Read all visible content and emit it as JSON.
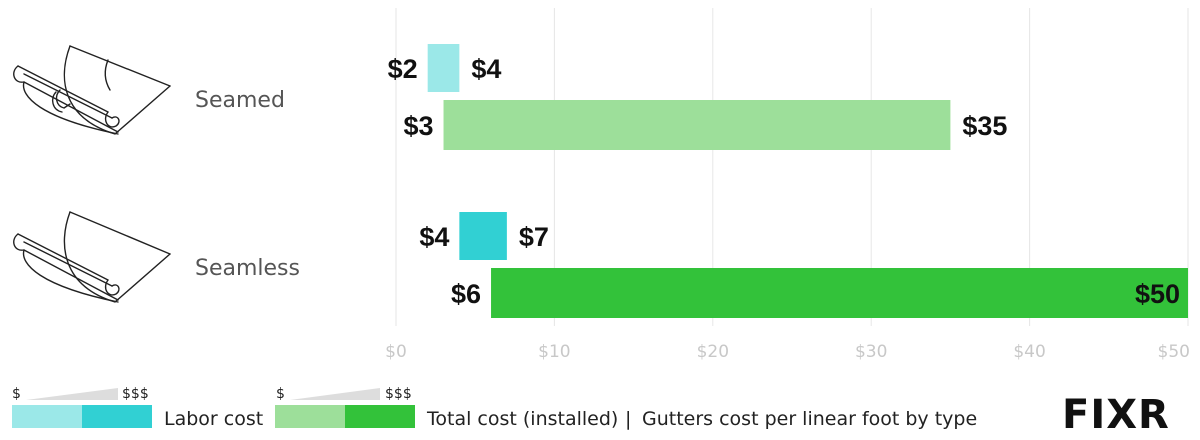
{
  "chart_data": {
    "type": "bar",
    "orientation": "horizontal",
    "bar_style": "floating-range",
    "categories": [
      "Seamed",
      "Seamless"
    ],
    "series": [
      {
        "name": "Labor cost",
        "ranges": [
          {
            "low": 2,
            "high": 4,
            "low_label": "$2",
            "high_label": "$4"
          },
          {
            "low": 4,
            "high": 7,
            "low_label": "$4",
            "high_label": "$7"
          }
        ]
      },
      {
        "name": "Total cost (installed)",
        "ranges": [
          {
            "low": 3,
            "high": 35,
            "low_label": "$3",
            "high_label": "$35"
          },
          {
            "low": 6,
            "high": 50,
            "low_label": "$6",
            "high_label": "$50"
          }
        ]
      }
    ],
    "xlim": [
      0,
      50
    ],
    "x_ticks": [
      {
        "value": 0,
        "label": "$0"
      },
      {
        "value": 10,
        "label": "$10"
      },
      {
        "value": 20,
        "label": "$20"
      },
      {
        "value": 30,
        "label": "$30"
      },
      {
        "value": 40,
        "label": "$40"
      },
      {
        "value": 50,
        "label": "$50"
      }
    ],
    "grid": true,
    "subtitle": "Gutters cost per linear foot by type"
  },
  "colors": {
    "labor": [
      "#9be8e8",
      "#31d0d3"
    ],
    "total": [
      "#9ddf9a",
      "#33c23a"
    ],
    "grid": "#e6e6e6",
    "tick": "#c8c8c8",
    "legend_ramp": "#dddddd"
  },
  "legend": {
    "low_symbol": "$",
    "high_symbol": "$$$",
    "labor_label": "Labor cost",
    "total_label": "Total cost (installed)",
    "separator": "|",
    "subtitle": "Gutters cost per linear foot by type"
  },
  "icons": [
    "seamed-gutter-icon",
    "seamless-gutter-icon"
  ],
  "logo": {
    "text": "FIXR"
  }
}
